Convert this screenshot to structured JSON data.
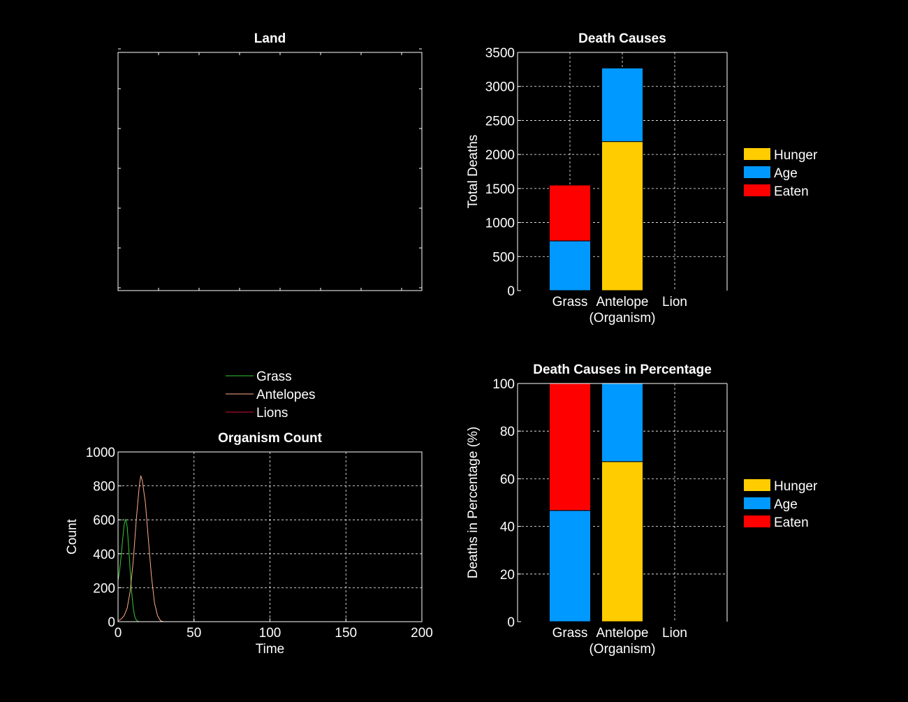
{
  "colors": {
    "background": "#000000",
    "axis": "#ffffff",
    "grid": "#ffffff",
    "hunger": "#ffcc00",
    "age": "#0099ff",
    "eaten": "#ff0000",
    "grass_line": "#33cc33",
    "antelopes_line": "#ffaa88",
    "lions_line": "#cc1133"
  },
  "chart_data": [
    {
      "id": "land",
      "type": "scatter",
      "title": "Land",
      "xlabel": "",
      "ylabel": "",
      "points": [],
      "grid": false
    },
    {
      "id": "death_causes",
      "type": "bar",
      "stacked": true,
      "title": "Death Causes",
      "xlabel": "(Organism)",
      "ylabel": "Total Deaths",
      "categories": [
        "Grass",
        "Antelope",
        "Lion"
      ],
      "ylim": [
        0,
        3500
      ],
      "yticks": [
        0,
        500,
        1000,
        1500,
        2000,
        2500,
        3000,
        3500
      ],
      "series": [
        {
          "name": "Hunger",
          "color": "#ffcc00",
          "values": [
            0,
            2190,
            0
          ]
        },
        {
          "name": "Age",
          "color": "#0099ff",
          "values": [
            730,
            1080,
            0
          ]
        },
        {
          "name": "Eaten",
          "color": "#ff0000",
          "values": [
            820,
            0,
            0
          ]
        }
      ],
      "legend": "right",
      "grid": true
    },
    {
      "id": "organism_count",
      "type": "line",
      "title": "Organism Count",
      "xlabel": "Time",
      "ylabel": "Count",
      "xlim": [
        0,
        200
      ],
      "ylim": [
        0,
        1000
      ],
      "xticks": [
        0,
        50,
        100,
        150,
        200
      ],
      "yticks": [
        0,
        200,
        400,
        600,
        800,
        1000
      ],
      "series": [
        {
          "name": "Grass",
          "color": "#33cc33",
          "x": [
            0,
            1,
            2,
            3,
            4,
            5,
            6,
            7,
            8,
            9,
            10,
            11,
            12,
            13,
            14,
            15
          ],
          "y": [
            240,
            300,
            380,
            480,
            570,
            605,
            560,
            440,
            300,
            170,
            80,
            30,
            10,
            3,
            0,
            0
          ]
        },
        {
          "name": "Antelopes",
          "color": "#ffaa88",
          "x": [
            0,
            2,
            4,
            6,
            8,
            10,
            12,
            14,
            15,
            16,
            18,
            20,
            22,
            24,
            26,
            28,
            30
          ],
          "y": [
            5,
            15,
            35,
            80,
            180,
            360,
            600,
            800,
            860,
            830,
            700,
            480,
            270,
            110,
            35,
            5,
            0
          ]
        },
        {
          "name": "Lions",
          "color": "#cc1133",
          "x": [
            0,
            200
          ],
          "y": [
            0,
            0
          ]
        }
      ],
      "legend": "top",
      "grid": true
    },
    {
      "id": "death_causes_pct",
      "type": "bar",
      "stacked": true,
      "title": "Death Causes in Percentage",
      "xlabel": "(Organism)",
      "ylabel": "Deaths in Percentage (%)",
      "categories": [
        "Grass",
        "Antelope",
        "Lion"
      ],
      "ylim": [
        0,
        100
      ],
      "yticks": [
        0,
        20,
        40,
        60,
        80,
        100
      ],
      "series": [
        {
          "name": "Hunger",
          "color": "#ffcc00",
          "values": [
            0,
            67.2,
            0
          ]
        },
        {
          "name": "Age",
          "color": "#0099ff",
          "values": [
            46.7,
            32.8,
            0
          ]
        },
        {
          "name": "Eaten",
          "color": "#ff0000",
          "values": [
            53.3,
            0,
            0
          ]
        }
      ],
      "legend": "right",
      "grid": true
    }
  ]
}
